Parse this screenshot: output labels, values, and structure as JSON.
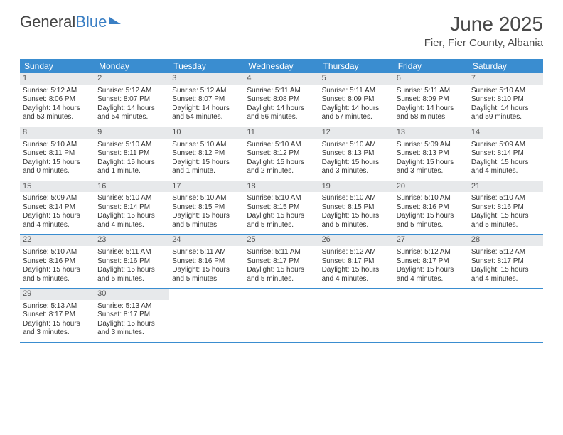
{
  "logo": {
    "part1": "General",
    "part2": "Blue"
  },
  "title": "June 2025",
  "subtitle": "Fier, Fier County, Albania",
  "colors": {
    "header_bg": "#3a8dd0",
    "header_fg": "#ffffff",
    "daynum_bg": "#e7e9eb",
    "rule": "#3a8dd0",
    "text": "#333333",
    "logo_blue": "#3a7fc4"
  },
  "dow": [
    "Sunday",
    "Monday",
    "Tuesday",
    "Wednesday",
    "Thursday",
    "Friday",
    "Saturday"
  ],
  "weeks": [
    [
      {
        "n": "1",
        "sr": "5:12 AM",
        "ss": "8:06 PM",
        "dl": "14 hours and 53 minutes."
      },
      {
        "n": "2",
        "sr": "5:12 AM",
        "ss": "8:07 PM",
        "dl": "14 hours and 54 minutes."
      },
      {
        "n": "3",
        "sr": "5:12 AM",
        "ss": "8:07 PM",
        "dl": "14 hours and 54 minutes."
      },
      {
        "n": "4",
        "sr": "5:11 AM",
        "ss": "8:08 PM",
        "dl": "14 hours and 56 minutes."
      },
      {
        "n": "5",
        "sr": "5:11 AM",
        "ss": "8:09 PM",
        "dl": "14 hours and 57 minutes."
      },
      {
        "n": "6",
        "sr": "5:11 AM",
        "ss": "8:09 PM",
        "dl": "14 hours and 58 minutes."
      },
      {
        "n": "7",
        "sr": "5:10 AM",
        "ss": "8:10 PM",
        "dl": "14 hours and 59 minutes."
      }
    ],
    [
      {
        "n": "8",
        "sr": "5:10 AM",
        "ss": "8:11 PM",
        "dl": "15 hours and 0 minutes."
      },
      {
        "n": "9",
        "sr": "5:10 AM",
        "ss": "8:11 PM",
        "dl": "15 hours and 1 minute."
      },
      {
        "n": "10",
        "sr": "5:10 AM",
        "ss": "8:12 PM",
        "dl": "15 hours and 1 minute."
      },
      {
        "n": "11",
        "sr": "5:10 AM",
        "ss": "8:12 PM",
        "dl": "15 hours and 2 minutes."
      },
      {
        "n": "12",
        "sr": "5:10 AM",
        "ss": "8:13 PM",
        "dl": "15 hours and 3 minutes."
      },
      {
        "n": "13",
        "sr": "5:09 AM",
        "ss": "8:13 PM",
        "dl": "15 hours and 3 minutes."
      },
      {
        "n": "14",
        "sr": "5:09 AM",
        "ss": "8:14 PM",
        "dl": "15 hours and 4 minutes."
      }
    ],
    [
      {
        "n": "15",
        "sr": "5:09 AM",
        "ss": "8:14 PM",
        "dl": "15 hours and 4 minutes."
      },
      {
        "n": "16",
        "sr": "5:10 AM",
        "ss": "8:14 PM",
        "dl": "15 hours and 4 minutes."
      },
      {
        "n": "17",
        "sr": "5:10 AM",
        "ss": "8:15 PM",
        "dl": "15 hours and 5 minutes."
      },
      {
        "n": "18",
        "sr": "5:10 AM",
        "ss": "8:15 PM",
        "dl": "15 hours and 5 minutes."
      },
      {
        "n": "19",
        "sr": "5:10 AM",
        "ss": "8:15 PM",
        "dl": "15 hours and 5 minutes."
      },
      {
        "n": "20",
        "sr": "5:10 AM",
        "ss": "8:16 PM",
        "dl": "15 hours and 5 minutes."
      },
      {
        "n": "21",
        "sr": "5:10 AM",
        "ss": "8:16 PM",
        "dl": "15 hours and 5 minutes."
      }
    ],
    [
      {
        "n": "22",
        "sr": "5:10 AM",
        "ss": "8:16 PM",
        "dl": "15 hours and 5 minutes."
      },
      {
        "n": "23",
        "sr": "5:11 AM",
        "ss": "8:16 PM",
        "dl": "15 hours and 5 minutes."
      },
      {
        "n": "24",
        "sr": "5:11 AM",
        "ss": "8:16 PM",
        "dl": "15 hours and 5 minutes."
      },
      {
        "n": "25",
        "sr": "5:11 AM",
        "ss": "8:17 PM",
        "dl": "15 hours and 5 minutes."
      },
      {
        "n": "26",
        "sr": "5:12 AM",
        "ss": "8:17 PM",
        "dl": "15 hours and 4 minutes."
      },
      {
        "n": "27",
        "sr": "5:12 AM",
        "ss": "8:17 PM",
        "dl": "15 hours and 4 minutes."
      },
      {
        "n": "28",
        "sr": "5:12 AM",
        "ss": "8:17 PM",
        "dl": "15 hours and 4 minutes."
      }
    ],
    [
      {
        "n": "29",
        "sr": "5:13 AM",
        "ss": "8:17 PM",
        "dl": "15 hours and 3 minutes."
      },
      {
        "n": "30",
        "sr": "5:13 AM",
        "ss": "8:17 PM",
        "dl": "15 hours and 3 minutes."
      },
      null,
      null,
      null,
      null,
      null
    ]
  ],
  "labels": {
    "sunrise": "Sunrise: ",
    "sunset": "Sunset: ",
    "daylight": "Daylight: "
  }
}
